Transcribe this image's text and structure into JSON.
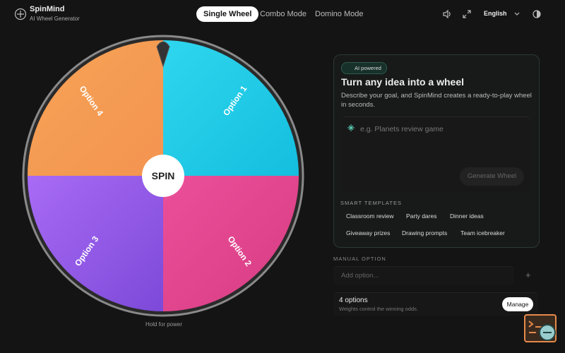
{
  "header": {
    "brand": "SpinMind",
    "tagline": "AI Wheel Generator",
    "tabs": [
      "Single Wheel",
      "Combo Mode",
      "Domino Mode"
    ],
    "language": "English"
  },
  "wheel": {
    "options": [
      "Option 1",
      "Option 2",
      "Option 3",
      "Option 4"
    ],
    "center": "SPIN",
    "hint": "Hold for power"
  },
  "ai_panel": {
    "badge": "AI powered",
    "title": "Turn any idea into a wheel",
    "description": "Describe your goal, and SpinMind creates a ready-to-play wheel in seconds.",
    "placeholder": "e.g. Planets review game",
    "button": "Generate Wheel",
    "templates_label": "SMART TEMPLATES",
    "templates": [
      "Classroom review",
      "Party dares",
      "Dinner ideas",
      "Giveaway prizes",
      "Drawing prompts",
      "Team icebreaker"
    ]
  },
  "manual": {
    "label": "MANUAL OPTION",
    "placeholder": "Add option...",
    "count": "4 options",
    "note": "Weights control the winning odds.",
    "button": "Manage"
  }
}
